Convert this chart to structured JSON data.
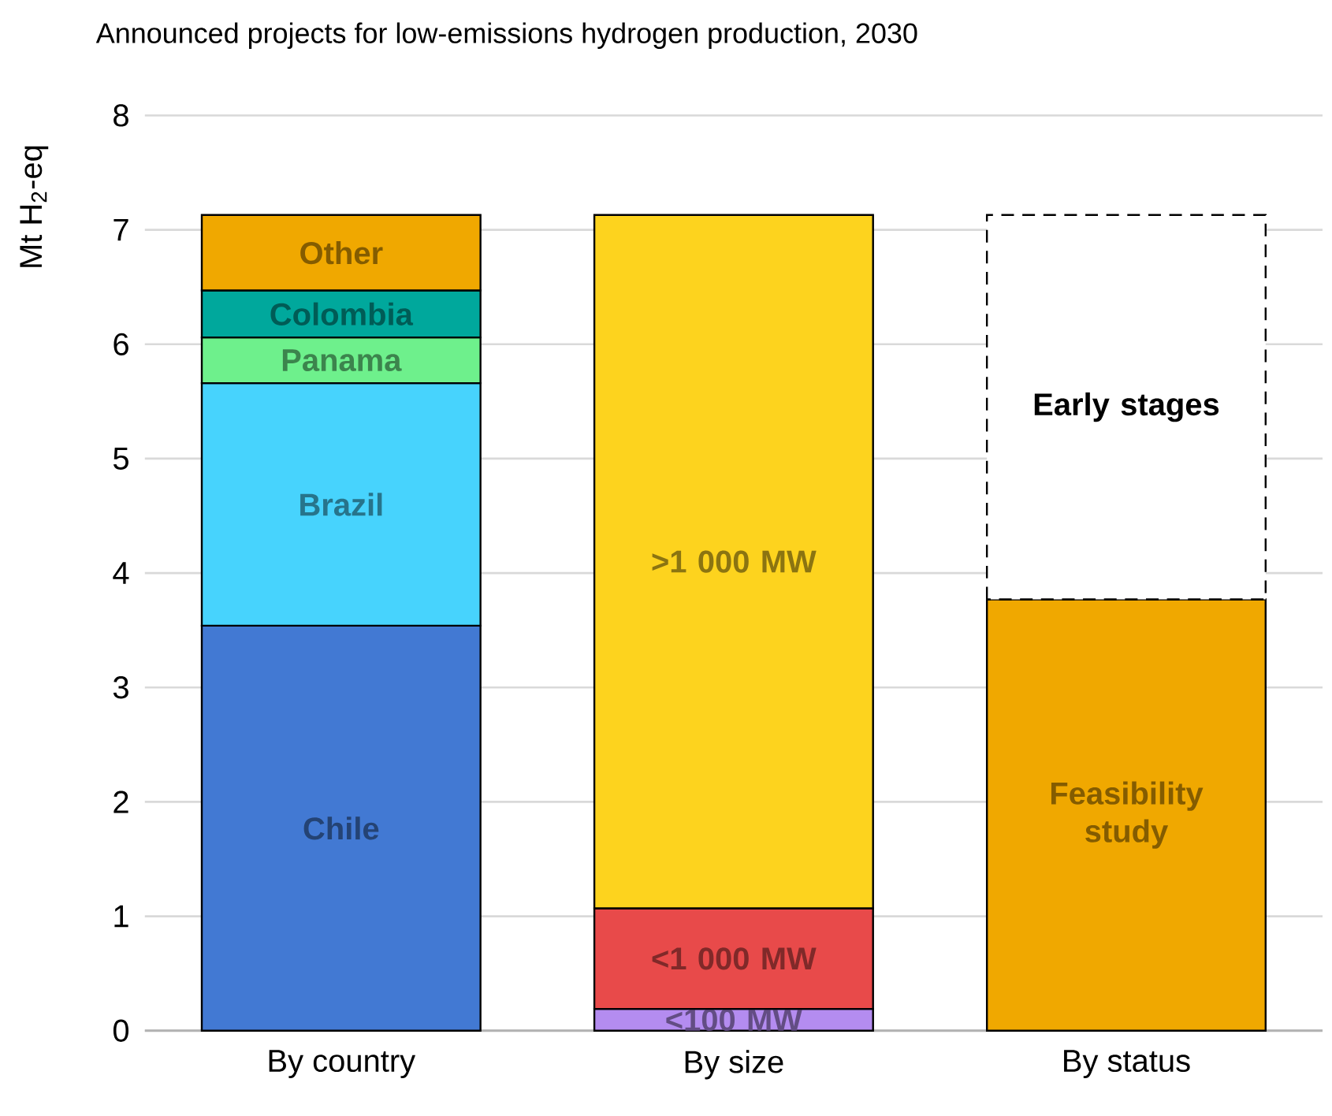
{
  "chart_data": {
    "type": "bar",
    "stacked": true,
    "title": "Announced projects for low-emissions hydrogen production, 2030",
    "ylabel": "Mt H$_{2}$-eq",
    "categories": [
      "By country",
      "By size",
      "By status"
    ],
    "ylim": [
      0,
      8
    ],
    "yticks": [
      0,
      1,
      2,
      3,
      4,
      5,
      6,
      7,
      8
    ],
    "grid": "y",
    "series": [
      {
        "name": "Chile",
        "color": "#4279d3",
        "values": [
          3.54,
          null,
          null
        ]
      },
      {
        "name": "Brazil",
        "color": "#47d3fd",
        "values": [
          2.12,
          null,
          null
        ]
      },
      {
        "name": "Panama",
        "color": "#6ef08c",
        "values": [
          0.4,
          null,
          null
        ]
      },
      {
        "name": "Colombia",
        "color": "#00a89c",
        "values": [
          0.41,
          null,
          null
        ]
      },
      {
        "name": "Other",
        "color": "#f0a800",
        "values": [
          0.66,
          null,
          null
        ]
      },
      {
        "name": "<100 MW",
        "color": "#b48cf0",
        "values": [
          null,
          0.19,
          null
        ]
      },
      {
        "name": "<1 000 MW",
        "color": "#e84a4a",
        "values": [
          null,
          0.88,
          null
        ]
      },
      {
        "name": ">1 000 MW",
        "color": "#fdd31e",
        "values": [
          null,
          6.06,
          null
        ]
      },
      {
        "name": "Feasibility study",
        "color": "#f0a800",
        "values": [
          null,
          null,
          3.77
        ]
      },
      {
        "name": "Early stages",
        "color": "#ffffff",
        "line_style": "dashed",
        "values": [
          null,
          null,
          3.36
        ]
      }
    ]
  }
}
